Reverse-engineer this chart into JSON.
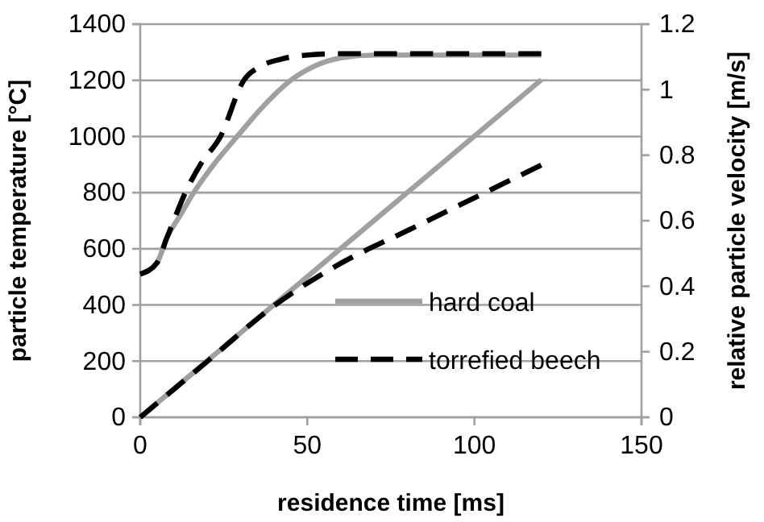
{
  "chart_data": {
    "type": "line",
    "xlabel": "residence time [ms]",
    "ylabel": "particle temperature [°C]",
    "y2label": "relative particle velocity [m/s]",
    "xlim": [
      0,
      150
    ],
    "xticks": [
      0,
      50,
      100,
      150
    ],
    "ylim": [
      0,
      1400
    ],
    "yticks": [
      0,
      200,
      400,
      600,
      800,
      1000,
      1200,
      1400
    ],
    "y2lim": [
      0,
      1.2
    ],
    "y2ticks": [
      0,
      0.2,
      0.4,
      0.6,
      0.8,
      1,
      1.2
    ],
    "grid": "y",
    "legend": "bottom right",
    "marker": "none",
    "series": [
      {
        "name": "hard coal",
        "color": "#a0a0a0",
        "line_style": "solid",
        "x": [
          0,
          5,
          8,
          12,
          16,
          22,
          29,
          37,
          45,
          52,
          60,
          70,
          90,
          120
        ],
        "values": [
          510,
          550,
          640,
          720,
          800,
          900,
          1000,
          1110,
          1200,
          1250,
          1280,
          1290,
          1290,
          1290
        ]
      },
      {
        "color": "#a0a0a0",
        "line_style": "solid",
        "axis": "y2",
        "x": [
          0,
          120
        ],
        "values": [
          0,
          1.03
        ]
      },
      {
        "name": "torrefied beech",
        "color": "#000000",
        "line_style": "dashed",
        "x": [
          0,
          5,
          8,
          10,
          13.5,
          18,
          24,
          31,
          36,
          42,
          50,
          60,
          90,
          120
        ],
        "values": [
          510,
          550,
          640,
          700,
          800,
          900,
          1000,
          1200,
          1250,
          1275,
          1290,
          1295,
          1295,
          1295
        ]
      },
      {
        "color": "#000000",
        "line_style": "dashed",
        "axis": "y2",
        "x": [
          0,
          20,
          40,
          60,
          80,
          100,
          120
        ],
        "values": [
          0,
          0.17,
          0.34,
          0.47,
          0.57,
          0.67,
          0.77
        ]
      }
    ]
  }
}
